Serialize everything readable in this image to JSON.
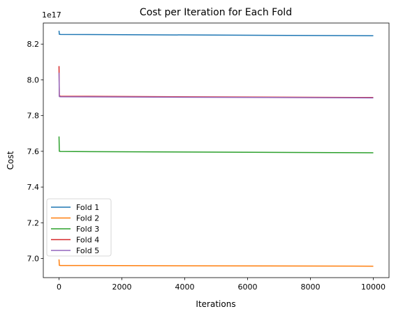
{
  "chart_data": {
    "type": "line",
    "title": "Cost per Iteration for Each Fold",
    "xlabel": "Iterations",
    "ylabel": "Cost",
    "offset_text": "1e17",
    "xlim": [
      -500,
      10500
    ],
    "ylim": [
      6.893,
      8.318
    ],
    "x_ticks": [
      0,
      2000,
      4000,
      6000,
      8000,
      10000
    ],
    "x_tick_labels": [
      "0",
      "2000",
      "4000",
      "6000",
      "8000",
      "10000"
    ],
    "y_ticks": [
      7.0,
      7.2,
      7.4,
      7.6,
      7.8,
      8.0,
      8.2
    ],
    "y_tick_labels": [
      "7.0",
      "7.2",
      "7.4",
      "7.6",
      "7.8",
      "8.0",
      "8.2"
    ],
    "grid": false,
    "legend_position": "lower-left",
    "series": [
      {
        "name": "Fold 1",
        "color": "#1f77b4",
        "x": [
          0,
          10,
          50,
          10000
        ],
        "y": [
          8.275,
          8.255,
          8.254,
          8.247
        ]
      },
      {
        "name": "Fold 2",
        "color": "#ff7f0e",
        "x": [
          0,
          10,
          50,
          10000
        ],
        "y": [
          6.995,
          6.962,
          6.961,
          6.957
        ]
      },
      {
        "name": "Fold 3",
        "color": "#2ca02c",
        "x": [
          0,
          10,
          50,
          10000
        ],
        "y": [
          7.683,
          7.6,
          7.599,
          7.592
        ]
      },
      {
        "name": "Fold 4",
        "color": "#d62728",
        "x": [
          0,
          10,
          50,
          10000
        ],
        "y": [
          8.077,
          7.91,
          7.908,
          7.901
        ]
      },
      {
        "name": "Fold 5",
        "color": "#9467bd",
        "x": [
          0,
          10,
          50,
          10000
        ],
        "y": [
          8.04,
          7.906,
          7.905,
          7.899
        ]
      }
    ]
  }
}
